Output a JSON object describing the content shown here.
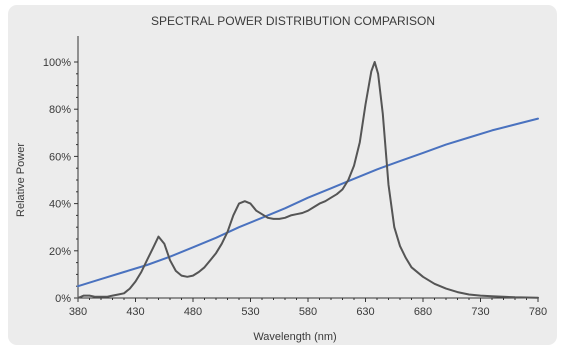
{
  "chart_data": {
    "type": "line",
    "title": "SPECTRAL POWER DISTRIBUTION COMPARISON",
    "xlabel": "Wavelength (nm)",
    "ylabel": "Relative Power",
    "xlim": [
      380,
      780
    ],
    "ylim": [
      0,
      100
    ],
    "x_ticks": [
      "380",
      "430",
      "480",
      "530",
      "580",
      "630",
      "680",
      "730",
      "780"
    ],
    "y_ticks": [
      "0%",
      "20%",
      "40%",
      "60%",
      "80%",
      "100%"
    ],
    "y_tick_values": [
      0,
      20,
      40,
      60,
      80,
      100
    ],
    "grid": false,
    "legend": "none",
    "series": [
      {
        "color": "#4a72bf",
        "x": [
          380,
          400,
          420,
          440,
          460,
          480,
          500,
          520,
          540,
          560,
          580,
          600,
          620,
          640,
          660,
          680,
          700,
          720,
          740,
          760,
          780
        ],
        "y": [
          5,
          8,
          11,
          14,
          17.5,
          21.5,
          25.5,
          30,
          34,
          38,
          42.5,
          46.5,
          50.5,
          54.5,
          58,
          61.5,
          65,
          68,
          71,
          73.5,
          76
        ]
      },
      {
        "color": "#555555",
        "x": [
          380,
          385,
          390,
          395,
          400,
          405,
          410,
          415,
          420,
          425,
          430,
          435,
          440,
          445,
          450,
          455,
          460,
          465,
          470,
          475,
          480,
          485,
          490,
          495,
          500,
          505,
          510,
          515,
          520,
          525,
          530,
          535,
          540,
          545,
          550,
          555,
          560,
          565,
          570,
          575,
          580,
          585,
          590,
          595,
          600,
          605,
          610,
          615,
          620,
          625,
          630,
          635,
          638,
          641,
          645,
          650,
          655,
          660,
          665,
          670,
          680,
          690,
          700,
          710,
          720,
          730,
          740,
          750,
          760,
          770,
          780
        ],
        "y": [
          0,
          1,
          1,
          0.5,
          0.5,
          0.5,
          1,
          1.5,
          2,
          4,
          7,
          11,
          16,
          21,
          26,
          23,
          16,
          11.5,
          9.5,
          9,
          9.5,
          11,
          13,
          16,
          19,
          23,
          28,
          35,
          40,
          41,
          40,
          37,
          35.5,
          34,
          33.5,
          33.5,
          34,
          35,
          35.5,
          36,
          37,
          38.5,
          40,
          41,
          42.5,
          44,
          46,
          50,
          56,
          66,
          82,
          96,
          100,
          95,
          78,
          48,
          30,
          22,
          17,
          13,
          9,
          6,
          4,
          2.5,
          1.5,
          1,
          0.7,
          0.5,
          0.3,
          0.2,
          0.1
        ]
      }
    ]
  }
}
